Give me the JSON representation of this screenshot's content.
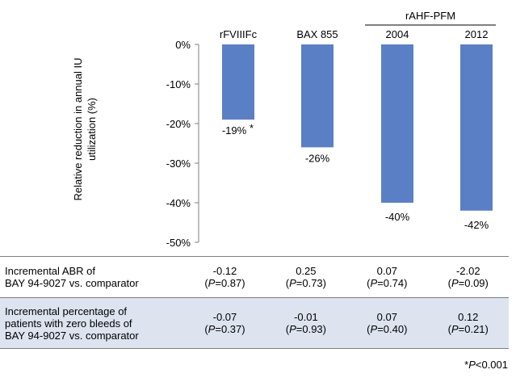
{
  "chart_data": {
    "type": "bar",
    "categories": [
      "rFVIIIFc",
      "BAX 855",
      "2004",
      "2012"
    ],
    "group_label": "rAHF-PFM",
    "values": [
      -19,
      -26,
      -40,
      -42
    ],
    "data_labels": [
      "-19%",
      "-26%",
      "-40%",
      "-42%"
    ],
    "data_label_marker": "*",
    "ylabel": "Relative reduction in annual IU utilization (%)",
    "ylim": [
      -50,
      0
    ],
    "yticks": [
      "0%",
      "-10%",
      "-20%",
      "-30%",
      "-40%",
      "-50%"
    ],
    "bar_color": "#5b7fc4",
    "grid": false
  },
  "table": {
    "rows": [
      {
        "label_line1": "Incremental ABR of",
        "label_line2": "BAY 94-9027 vs. comparator",
        "label_line3": "",
        "values": [
          "-0.12",
          "0.25",
          "0.07",
          "-2.02"
        ],
        "p_values": [
          "0.87",
          "0.73",
          "0.74",
          "0.09"
        ]
      },
      {
        "label_line1": "Incremental percentage of",
        "label_line2": "patients with zero bleeds of",
        "label_line3": "BAY 94-9027 vs. comparator",
        "values": [
          "-0.07",
          "-0.01",
          "0.07",
          "0.12"
        ],
        "p_values": [
          "0.37",
          "0.93",
          "0.40",
          "0.21"
        ]
      }
    ],
    "p_symbol": "P",
    "p_prefix": "(",
    "p_eq": "=",
    "p_suffix": ")"
  },
  "footnote": {
    "marker": "*",
    "symbol": "P",
    "text": "<0.001"
  }
}
